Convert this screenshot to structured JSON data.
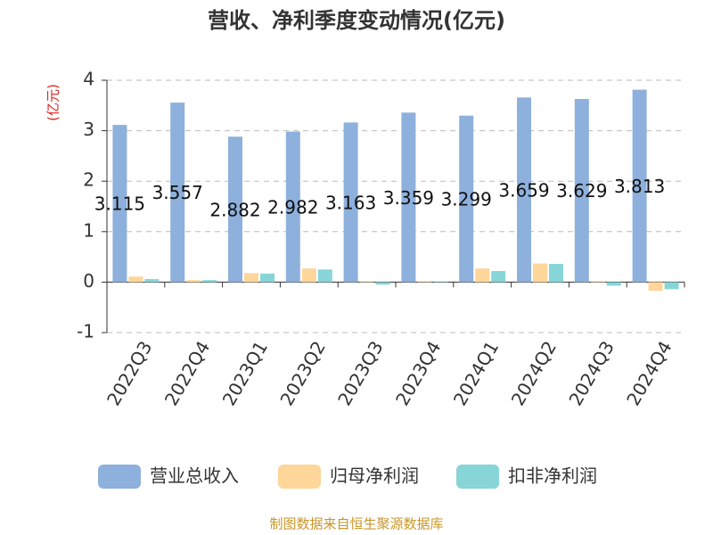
{
  "chart_data": {
    "type": "bar",
    "title": "营收、净利季度变动情况(亿元)",
    "y_label": "(亿元)",
    "categories": [
      "2022Q3",
      "2022Q4",
      "2023Q1",
      "2023Q2",
      "2023Q3",
      "2023Q4",
      "2024Q1",
      "2024Q2",
      "2024Q3",
      "2024Q4"
    ],
    "series": [
      {
        "name": "营业总收入",
        "color": "#8eb0dc",
        "values": [
          3.115,
          3.557,
          2.882,
          2.982,
          3.163,
          3.359,
          3.299,
          3.659,
          3.629,
          3.813
        ],
        "show_labels": true
      },
      {
        "name": "归母净利润",
        "color": "#ffd699",
        "values": [
          0.11,
          0.04,
          0.18,
          0.27,
          0.02,
          0.02,
          0.27,
          0.37,
          0.02,
          -0.17
        ]
      },
      {
        "name": "扣非净利润",
        "color": "#88d5d8",
        "values": [
          0.06,
          0.04,
          0.17,
          0.25,
          -0.05,
          0.01,
          0.22,
          0.36,
          -0.07,
          -0.14
        ]
      }
    ],
    "ylim": [
      -1,
      4
    ],
    "yticks": [
      -1,
      0,
      1,
      2,
      3,
      4
    ],
    "grid": true,
    "source": "制图数据来自恒生聚源数据库"
  }
}
